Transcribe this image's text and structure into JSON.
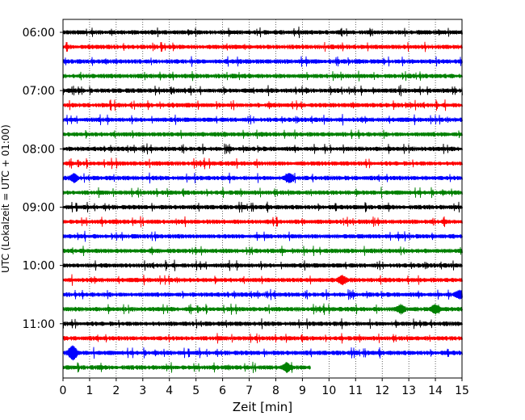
{
  "chart_data": {
    "type": "line",
    "chart_kind": "helicorder",
    "xlabel": "Zeit  [min]",
    "ylabel": "UTC (Lokalzeit = UTC + 01:00)",
    "xlim": [
      0,
      15
    ],
    "x_ticks": [
      "0",
      "1",
      "2",
      "3",
      "4",
      "5",
      "6",
      "7",
      "8",
      "9",
      "10",
      "11",
      "12",
      "13",
      "14",
      "15"
    ],
    "y_tick_labels": [
      "06:00",
      "07:00",
      "08:00",
      "09:00",
      "10:00",
      "11:00"
    ],
    "y_tick_rows": [
      0,
      4,
      8,
      12,
      16,
      20
    ],
    "grid": "vertical dotted lines at each minute",
    "line_minutes": 15,
    "colors": [
      "#000000",
      "#ff0000",
      "#0000ff",
      "#008000"
    ],
    "rows": [
      {
        "start": "06:00",
        "color": "#000000",
        "end_minute": 15
      },
      {
        "start": "06:15",
        "color": "#ff0000",
        "end_minute": 15
      },
      {
        "start": "06:30",
        "color": "#0000ff",
        "end_minute": 15
      },
      {
        "start": "06:45",
        "color": "#008000",
        "end_minute": 15
      },
      {
        "start": "07:00",
        "color": "#000000",
        "end_minute": 15
      },
      {
        "start": "07:15",
        "color": "#ff0000",
        "end_minute": 15
      },
      {
        "start": "07:30",
        "color": "#0000ff",
        "end_minute": 15
      },
      {
        "start": "07:45",
        "color": "#008000",
        "end_minute": 15
      },
      {
        "start": "08:00",
        "color": "#000000",
        "end_minute": 15
      },
      {
        "start": "08:15",
        "color": "#ff0000",
        "end_minute": 15
      },
      {
        "start": "08:30",
        "color": "#0000ff",
        "end_minute": 15
      },
      {
        "start": "08:45",
        "color": "#008000",
        "end_minute": 15
      },
      {
        "start": "09:00",
        "color": "#000000",
        "end_minute": 15
      },
      {
        "start": "09:15",
        "color": "#ff0000",
        "end_minute": 15
      },
      {
        "start": "09:30",
        "color": "#0000ff",
        "end_minute": 15
      },
      {
        "start": "09:45",
        "color": "#008000",
        "end_minute": 15
      },
      {
        "start": "10:00",
        "color": "#000000",
        "end_minute": 15
      },
      {
        "start": "10:15",
        "color": "#ff0000",
        "end_minute": 15
      },
      {
        "start": "10:30",
        "color": "#0000ff",
        "end_minute": 15
      },
      {
        "start": "10:45",
        "color": "#008000",
        "end_minute": 15
      },
      {
        "start": "11:00",
        "color": "#000000",
        "end_minute": 15
      },
      {
        "start": "11:15",
        "color": "#ff0000",
        "end_minute": 15
      },
      {
        "start": "11:30",
        "color": "#0000ff",
        "end_minute": 15
      },
      {
        "start": "11:45",
        "color": "#008000",
        "end_minute": 9.3
      }
    ],
    "events": [
      {
        "start": "11:30",
        "minute": 0.35,
        "amplitude": "large"
      },
      {
        "start": "10:45",
        "minute": 12.7,
        "amplitude": "medium"
      },
      {
        "start": "10:45",
        "minute": 14.0,
        "amplitude": "medium"
      },
      {
        "start": "10:30",
        "minute": 14.9,
        "amplitude": "medium"
      },
      {
        "start": "10:15",
        "minute": 10.5,
        "amplitude": "medium"
      },
      {
        "start": "08:30",
        "minute": 0.4,
        "amplitude": "medium"
      },
      {
        "start": "08:30",
        "minute": 8.5,
        "amplitude": "medium"
      },
      {
        "start": "11:45",
        "minute": 8.4,
        "amplitude": "medium"
      }
    ]
  }
}
